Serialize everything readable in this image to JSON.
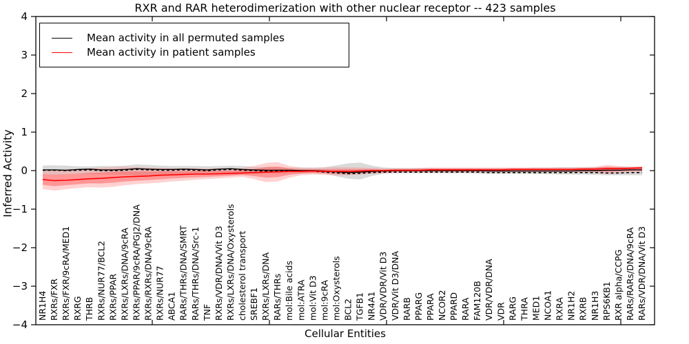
{
  "title": "RXR and RAR heterodimerization with other nuclear receptor -- 423 samples",
  "legend": {
    "items": [
      {
        "label": "Mean activity in all permuted samples",
        "color": "#000000"
      },
      {
        "label": "Mean activity in patient samples",
        "color": "#ff0000"
      }
    ]
  },
  "chart_data": {
    "type": "line",
    "title": "RXR and RAR heterodimerization with other nuclear receptor -- 423 samples",
    "xlabel": "Cellular Entities",
    "ylabel": "Inferred Activity",
    "ylim": [
      -4,
      4
    ],
    "grid": false,
    "legend_position": "upper left",
    "yticks": [
      4,
      3,
      2,
      1,
      0,
      -1,
      -2,
      -3,
      -4
    ],
    "ytick_labels": [
      "4",
      "3",
      "2",
      "1",
      "0",
      "−1",
      "−2",
      "−3",
      "−4"
    ],
    "categories": [
      "NR1H4",
      "RXRs/FXR",
      "RXRs/FXR/9cRA/MED1",
      "RXRG",
      "THRB",
      "RXRs/NUR77/BCL2",
      "RXRs/PPAR",
      "RXRs/LXRs/DNA/9cRA",
      "RXRs/PPAR/9cRA/PGJ2/DNA",
      "RXRs/RXRs/DNA/9cRA",
      "RXRs/NUR77",
      "ABCA1",
      "RARs/THRs/DNA/SMRT",
      "RARs/THRs/DNA/Src-1",
      "TNF",
      "RXRs/VDR/DNA/Vit D3",
      "RXRs/LXRs/DNA/Oxysterols",
      "cholesterol transport",
      "SREBF1",
      "RXRs/LXRs/DNA",
      "RARs/THRs",
      "mol:Bile acids",
      "mol:ATRA",
      "mol:Vit D3",
      "mol:9cRA",
      "mol:Oxysterols",
      "BCL2",
      "TGFB1",
      "NR4A1",
      "VDR/VDR/Vit D3",
      "VDR/Vit D3/DNA",
      "RARB",
      "PPARG",
      "PPARA",
      "NCOR2",
      "PPARD",
      "RARA",
      "FAM120B",
      "VDR/VDR/DNA",
      "VDR",
      "RARG",
      "THRA",
      "MED1",
      "NCOA1",
      "RXRA",
      "NR1H2",
      "RXRB",
      "NR1H3",
      "RPS6KB1",
      "RXR alpha/CCPG",
      "RARs/RARs/DNA/9cRA",
      "RARs/VDR/DNA/Vit D3"
    ],
    "series": [
      {
        "name": "Mean activity in all permuted samples",
        "color": "#000000",
        "values": [
          0.02,
          0.02,
          0.01,
          0.03,
          0.04,
          0.02,
          0.02,
          0.03,
          0.05,
          0.04,
          0.03,
          0.03,
          0.04,
          0.03,
          0.02,
          0.04,
          0.05,
          0.03,
          0.02,
          0.01,
          0.01,
          0.01,
          0.0,
          0.0,
          -0.01,
          -0.03,
          -0.05,
          -0.04,
          -0.02,
          -0.01,
          0.0,
          0.0,
          0.0,
          0.0,
          0.0,
          0.0,
          0.0,
          0.0,
          -0.01,
          -0.01,
          -0.01,
          -0.01,
          -0.01,
          -0.01,
          -0.01,
          -0.01,
          0.0,
          0.0,
          0.01,
          0.01,
          0.02,
          0.02
        ]
      },
      {
        "name": "Mean activity in patient samples",
        "color": "#ff0000",
        "values": [
          -0.23,
          -0.26,
          -0.25,
          -0.23,
          -0.21,
          -0.2,
          -0.18,
          -0.16,
          -0.15,
          -0.14,
          -0.12,
          -0.11,
          -0.1,
          -0.09,
          -0.09,
          -0.08,
          -0.07,
          -0.06,
          -0.05,
          -0.04,
          -0.03,
          -0.02,
          -0.02,
          -0.01,
          -0.02,
          -0.02,
          -0.02,
          -0.01,
          0.0,
          0.0,
          0.01,
          0.01,
          0.01,
          0.02,
          0.02,
          0.02,
          0.02,
          0.02,
          0.02,
          0.02,
          0.03,
          0.03,
          0.03,
          0.03,
          0.03,
          0.03,
          0.04,
          0.04,
          0.05,
          0.05,
          0.06,
          0.07
        ]
      }
    ],
    "bands": [
      {
        "name": "permuted-sample-range",
        "color": "#a8a8a8",
        "opacity": 0.42,
        "upper": [
          0.13,
          0.14,
          0.13,
          0.11,
          0.11,
          0.12,
          0.12,
          0.13,
          0.16,
          0.15,
          0.13,
          0.12,
          0.12,
          0.12,
          0.11,
          0.12,
          0.13,
          0.12,
          0.1,
          0.09,
          0.09,
          0.08,
          0.08,
          0.08,
          0.09,
          0.14,
          0.19,
          0.21,
          0.13,
          0.08,
          0.07,
          0.07,
          0.07,
          0.07,
          0.07,
          0.07,
          0.07,
          0.07,
          0.07,
          0.07,
          0.07,
          0.07,
          0.08,
          0.08,
          0.09,
          0.09,
          0.09,
          0.09,
          0.09,
          0.1,
          0.1,
          0.1
        ],
        "lower": [
          -0.1,
          -0.11,
          -0.1,
          -0.09,
          -0.09,
          -0.1,
          -0.1,
          -0.11,
          -0.13,
          -0.12,
          -0.11,
          -0.1,
          -0.1,
          -0.1,
          -0.09,
          -0.1,
          -0.11,
          -0.1,
          -0.09,
          -0.08,
          -0.08,
          -0.07,
          -0.07,
          -0.07,
          -0.08,
          -0.15,
          -0.21,
          -0.23,
          -0.14,
          -0.08,
          -0.07,
          -0.07,
          -0.07,
          -0.07,
          -0.07,
          -0.07,
          -0.07,
          -0.08,
          -0.08,
          -0.08,
          -0.08,
          -0.08,
          -0.09,
          -0.09,
          -0.1,
          -0.1,
          -0.1,
          -0.11,
          -0.12,
          -0.12,
          -0.12,
          -0.12
        ]
      },
      {
        "name": "patient-sample-range",
        "color": "#ff8888",
        "opacity": 0.38,
        "inner_color": "#ff4444",
        "inner_opacity": 0.42,
        "inner_factor": 0.55,
        "upper": [
          0.02,
          0.02,
          0.03,
          0.04,
          0.06,
          0.08,
          0.09,
          0.1,
          0.09,
          0.08,
          0.07,
          0.06,
          0.06,
          0.06,
          0.06,
          0.06,
          0.06,
          0.07,
          0.12,
          0.2,
          0.22,
          0.12,
          0.08,
          0.07,
          0.08,
          0.09,
          0.09,
          0.08,
          0.07,
          0.06,
          0.06,
          0.06,
          0.07,
          0.08,
          0.08,
          0.08,
          0.08,
          0.08,
          0.08,
          0.08,
          0.08,
          0.08,
          0.08,
          0.08,
          0.08,
          0.08,
          0.09,
          0.1,
          0.15,
          0.12,
          0.1,
          0.11
        ],
        "lower": [
          -0.48,
          -0.52,
          -0.48,
          -0.45,
          -0.43,
          -0.44,
          -0.42,
          -0.38,
          -0.35,
          -0.33,
          -0.31,
          -0.28,
          -0.26,
          -0.24,
          -0.22,
          -0.2,
          -0.18,
          -0.16,
          -0.22,
          -0.3,
          -0.28,
          -0.18,
          -0.12,
          -0.1,
          -0.11,
          -0.12,
          -0.12,
          -0.1,
          -0.08,
          -0.07,
          -0.06,
          -0.05,
          -0.05,
          -0.05,
          -0.05,
          -0.05,
          -0.05,
          -0.05,
          -0.05,
          -0.05,
          -0.04,
          -0.04,
          -0.04,
          -0.04,
          -0.04,
          -0.04,
          -0.05,
          -0.06,
          -0.09,
          -0.07,
          -0.05,
          -0.04
        ]
      }
    ],
    "dashed_overlay": {
      "name": "permuted-sample-dashed-mean",
      "color": "#000000",
      "values": [
        0.01,
        0.01,
        0.0,
        0.01,
        0.02,
        0.0,
        0.0,
        0.01,
        0.03,
        0.02,
        0.01,
        0.01,
        0.02,
        0.01,
        0.0,
        0.02,
        0.03,
        0.01,
        0.0,
        -0.01,
        -0.01,
        -0.01,
        -0.01,
        -0.01,
        -0.04,
        -0.06,
        -0.08,
        -0.07,
        -0.05,
        -0.04,
        -0.04,
        -0.04,
        -0.04,
        -0.04,
        -0.04,
        -0.04,
        -0.04,
        -0.04,
        -0.05,
        -0.05,
        -0.05,
        -0.05,
        -0.05,
        -0.05,
        -0.05,
        -0.05,
        -0.05,
        -0.05,
        -0.06,
        -0.06,
        -0.05,
        -0.05
      ]
    }
  }
}
